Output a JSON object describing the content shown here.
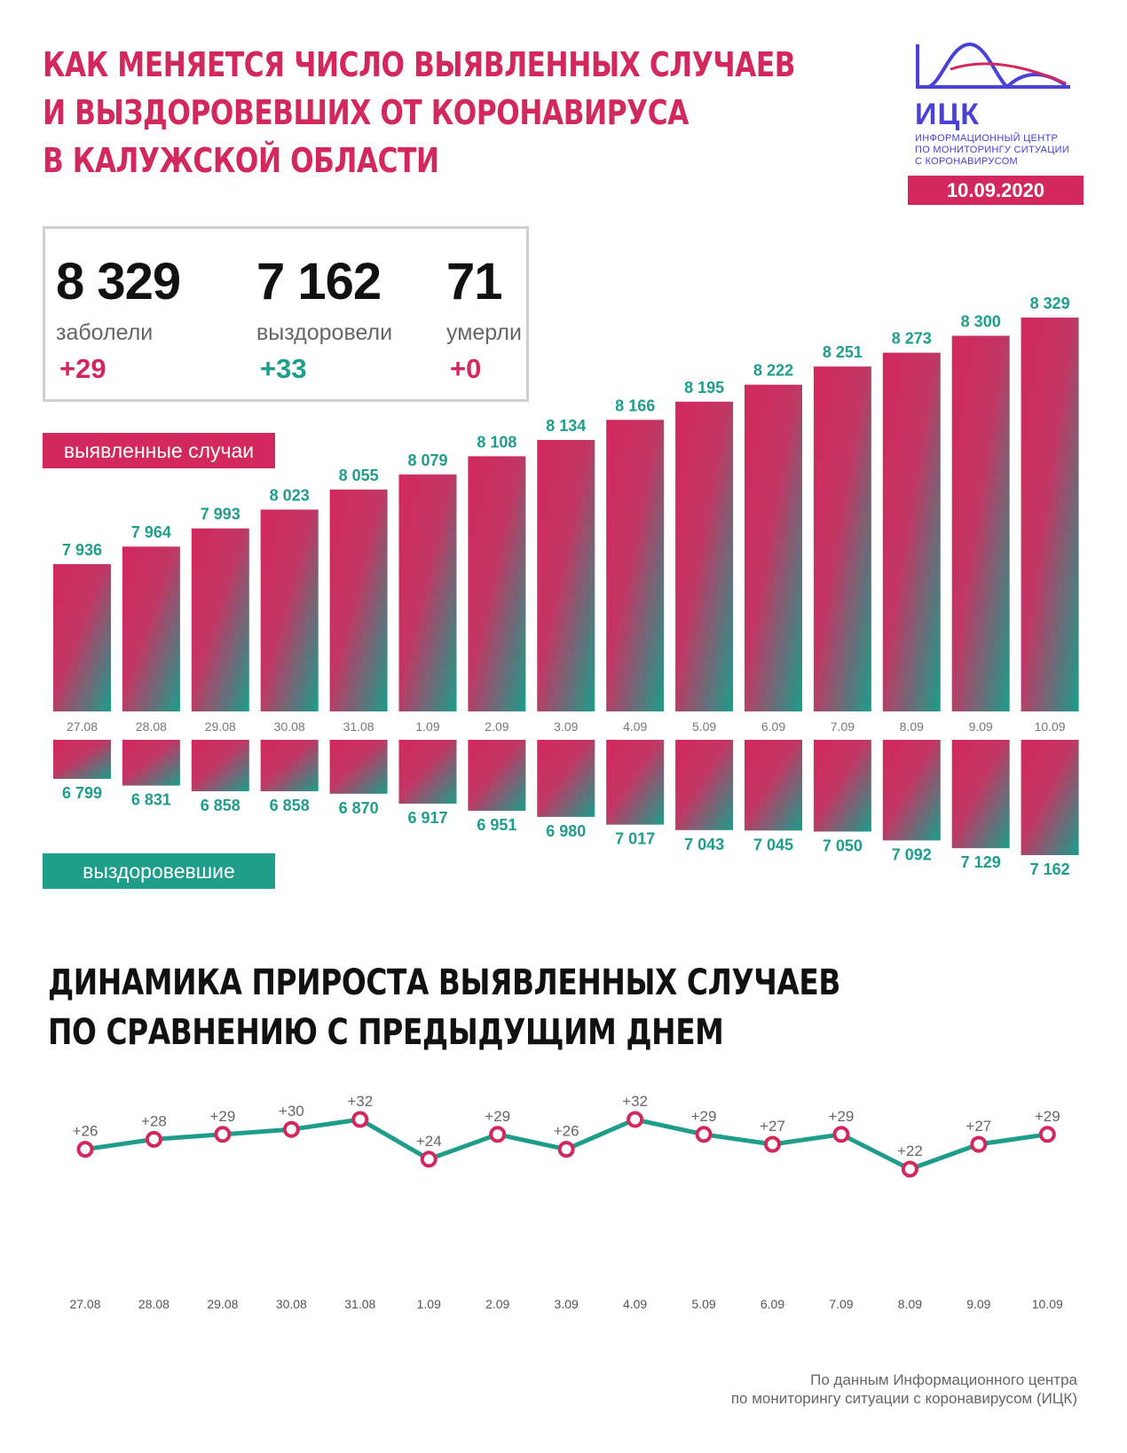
{
  "header": {
    "title_lines": [
      "КАК МЕНЯЕТСЯ ЧИСЛО ВЫЯВЛЕННЫХ СЛУЧАЕВ",
      "И ВЫЗДОРОВЕВШИХ ОТ КОРОНАВИРУСА",
      "В КАЛУЖСКОЙ ОБЛАСТИ"
    ]
  },
  "logo": {
    "abbr": "ИЦК",
    "sub_lines": [
      "ИНФОРМАЦИОННЫЙ ЦЕНТР",
      "ПО МОНИТОРИНГУ СИТУАЦИИ",
      "С КОРОНАВИРУСОМ"
    ],
    "color": "#4a41d6"
  },
  "date": "10.09.2020",
  "stats": [
    {
      "value": "8 329",
      "label": "заболели",
      "delta": "+29"
    },
    {
      "value": "7 162",
      "label": "выздоровели",
      "delta": "+33"
    },
    {
      "value": "71",
      "label": "умерли",
      "delta": "+0"
    }
  ],
  "tags": {
    "cases": "выявленные случаи",
    "recovered": "выздоровевшие"
  },
  "second_title_lines": [
    "ДИНАМИКА ПРИРОСТА ВЫЯВЛЕННЫХ СЛУЧАЕВ",
    "ПО СРАВНЕНИЮ С ПРЕДЫДУЩИМ ДНЕМ"
  ],
  "source_lines": [
    "По данным Информационного центра",
    "по мониторингу ситуации с коронавирусом (ИЦК)"
  ],
  "colors": {
    "pink": "#d2285d",
    "teal": "#1e9e8a",
    "line": "#1e9e8a"
  },
  "chart_data": [
    {
      "type": "bar",
      "categories": [
        "27.08",
        "28.08",
        "29.08",
        "30.08",
        "31.08",
        "1.09",
        "2.09",
        "3.09",
        "4.09",
        "5.09",
        "6.09",
        "7.09",
        "8.09",
        "9.09",
        "10.09"
      ],
      "series": [
        {
          "name": "выявленные случаи",
          "values": [
            7936,
            7964,
            7993,
            8023,
            8055,
            8079,
            8108,
            8134,
            8166,
            8195,
            8222,
            8251,
            8273,
            8300,
            8329
          ]
        },
        {
          "name": "выздоровевшие",
          "values": [
            6799,
            6831,
            6858,
            6858,
            6870,
            6917,
            6951,
            6980,
            7017,
            7043,
            7045,
            7050,
            7092,
            7129,
            7162
          ]
        }
      ],
      "value_labels": {
        "cases": [
          "7 936",
          "7 964",
          "7 993",
          "8 023",
          "8 055",
          "8 079",
          "8 108",
          "8 134",
          "8 166",
          "8 195",
          "8 222",
          "8 251",
          "8 273",
          "8 300",
          "8 329"
        ],
        "recovered": [
          "6 799",
          "6 831",
          "6 858",
          "6 858",
          "6 870",
          "6 917",
          "6 951",
          "6 980",
          "7 017",
          "7 043",
          "7 045",
          "7 050",
          "7 092",
          "7 129",
          "7 162"
        ]
      }
    },
    {
      "type": "line",
      "title": "ДИНАМИКА ПРИРОСТА ВЫЯВЛЕННЫХ СЛУЧАЕВ ПО СРАВНЕНИЮ С ПРЕДЫДУЩИМ ДНЕМ",
      "categories": [
        "27.08",
        "28.08",
        "29.08",
        "30.08",
        "31.08",
        "1.09",
        "2.09",
        "3.09",
        "4.09",
        "5.09",
        "6.09",
        "7.09",
        "8.09",
        "9.09",
        "10.09"
      ],
      "values": [
        26,
        28,
        29,
        30,
        32,
        24,
        29,
        26,
        32,
        29,
        27,
        29,
        22,
        27,
        29
      ],
      "value_labels": [
        "+26",
        "+28",
        "+29",
        "+30",
        "+32",
        "+24",
        "+29",
        "+26",
        "+32",
        "+29",
        "+27",
        "+29",
        "+22",
        "+27",
        "+29"
      ]
    }
  ]
}
